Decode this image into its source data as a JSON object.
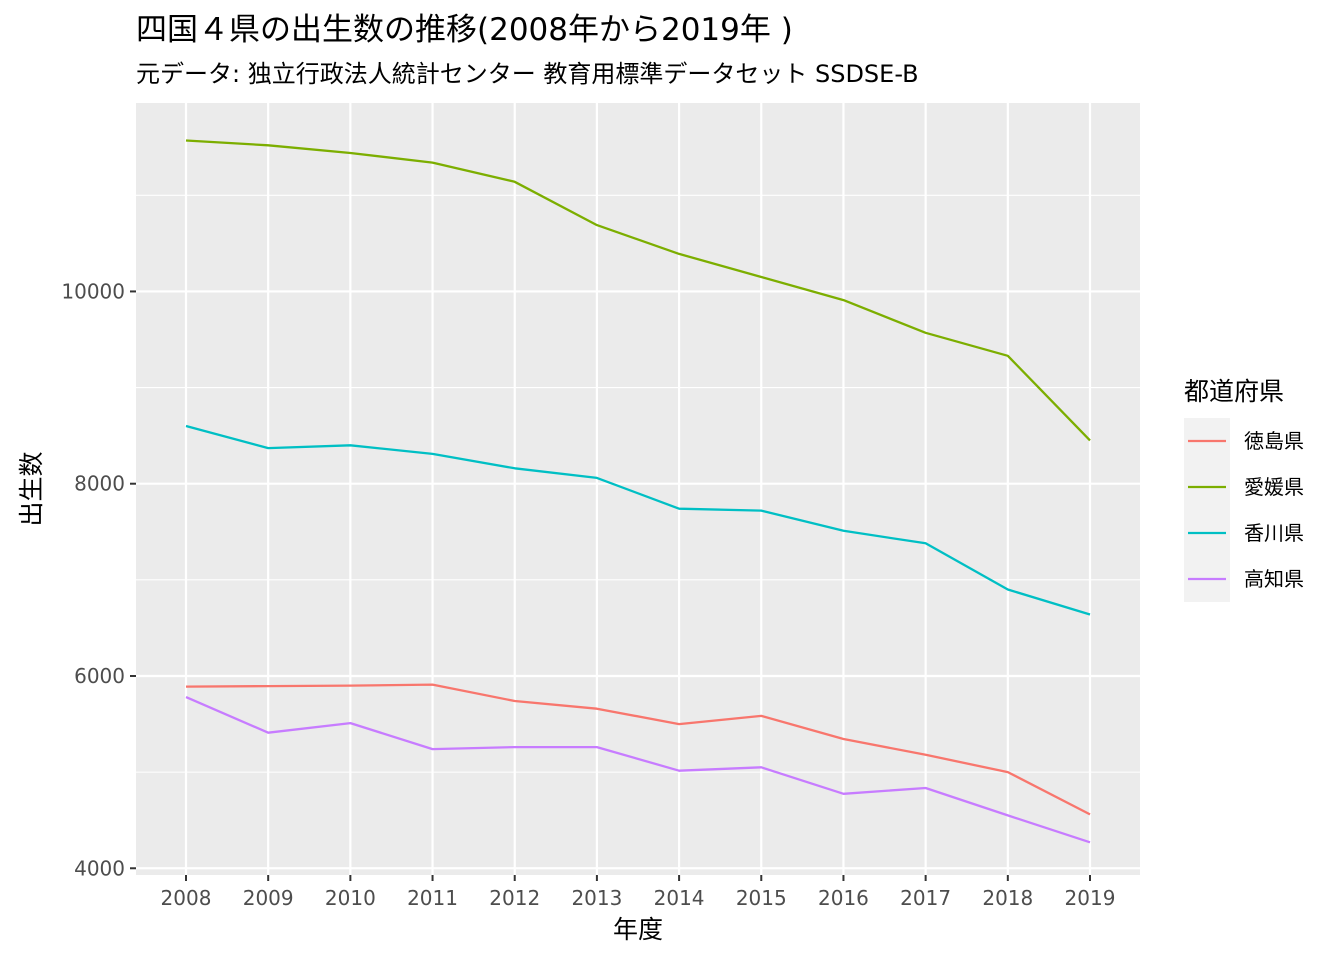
{
  "chart_data": {
    "type": "line",
    "title": "四国４県の出生数の推移(2008年から2019年 )",
    "subtitle": "元データ: 独立行政法人統計センター 教育用標準データセット SSDSE-B",
    "xlabel": "年度",
    "ylabel": "出生数",
    "x": [
      2008,
      2009,
      2010,
      2011,
      2012,
      2013,
      2014,
      2015,
      2016,
      2017,
      2018,
      2019
    ],
    "x_tick_labels": [
      "2008",
      "2009",
      "2010",
      "2011",
      "2012",
      "2013",
      "2014",
      "2015",
      "2016",
      "2017",
      "2018",
      "2019"
    ],
    "ylim": [
      3930,
      11960
    ],
    "y_ticks": [
      4000,
      6000,
      8000,
      10000
    ],
    "y_tick_labels": [
      "4000",
      "6000",
      "8000",
      "10000"
    ],
    "grid": true,
    "legend": {
      "title": "都道府県",
      "position": "right"
    },
    "series": [
      {
        "name": "徳島県",
        "color": "#f8766d",
        "values": [
          5890,
          5895,
          5900,
          5910,
          5740,
          5660,
          5500,
          5585,
          5345,
          5180,
          5000,
          4560
        ]
      },
      {
        "name": "愛媛県",
        "color": "#7cae00",
        "values": [
          11570,
          11520,
          11440,
          11340,
          11140,
          10690,
          10390,
          10150,
          9910,
          9570,
          9330,
          8450
        ]
      },
      {
        "name": "香川県",
        "color": "#00bfc4",
        "values": [
          8600,
          8370,
          8400,
          8310,
          8160,
          8060,
          7740,
          7720,
          7510,
          7380,
          6900,
          6640
        ]
      },
      {
        "name": "高知県",
        "color": "#c77cff",
        "values": [
          5780,
          5410,
          5510,
          5240,
          5260,
          5260,
          5015,
          5050,
          4775,
          4835,
          4550,
          4270
        ]
      }
    ]
  }
}
